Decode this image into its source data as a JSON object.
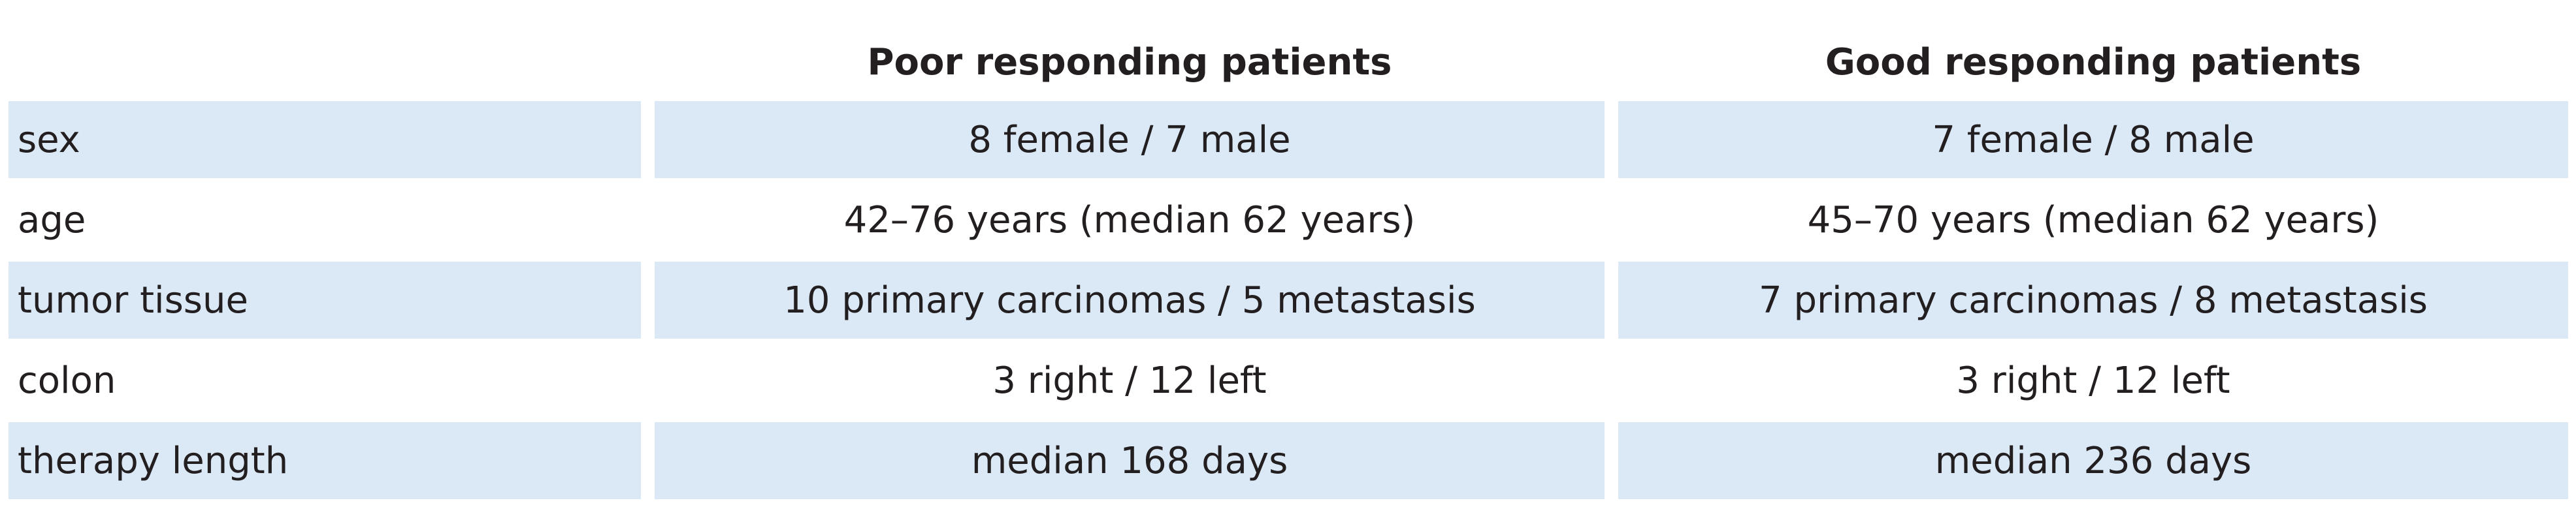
{
  "table": {
    "header": [
      "Poor responding patients",
      "Good responding patients"
    ],
    "rows": [
      [
        "sex",
        "8 female / 7 male",
        "7 female / 8 male"
      ],
      [
        "age",
        "42–76 years (median 62 years)",
        "45–70 years (median 62 years)"
      ],
      [
        "tumor tissue",
        "10 primary carcinomas / 5 metastasis",
        "7 primary carcinomas / 8 metastasis"
      ],
      [
        "colon",
        "3 right / 12 left",
        "3 right / 12 left"
      ],
      [
        "therapy length",
        "median 168 days",
        "median 236 days"
      ]
    ]
  }
}
